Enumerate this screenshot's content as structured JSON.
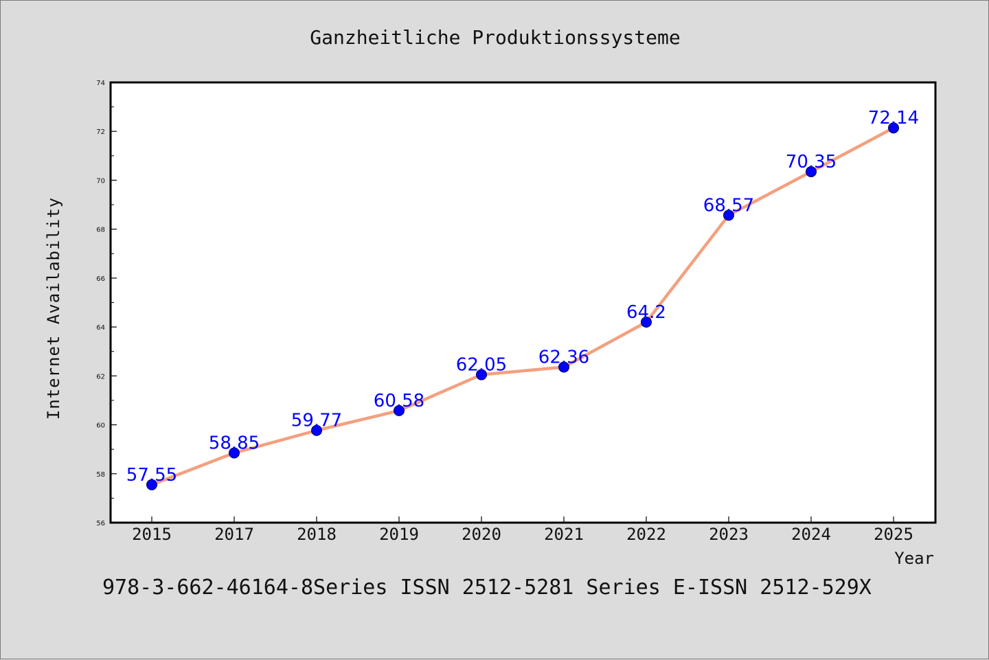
{
  "chart_data": {
    "type": "line",
    "title": "Ganzheitliche Produktionssysteme",
    "xlabel": "Year",
    "ylabel": "Internet Availability",
    "categories": [
      "2015",
      "2017",
      "2018",
      "2019",
      "2020",
      "2021",
      "2022",
      "2023",
      "2024",
      "2025"
    ],
    "series": [
      {
        "values": [
          57.55,
          58.85,
          59.77,
          60.58,
          62.05,
          62.36,
          64.2,
          68.57,
          70.35,
          72.14
        ],
        "line_color": "#f4a07f",
        "marker_color": "#0000ff",
        "label_color": "#0000ff"
      }
    ],
    "data_labels": [
      "57.55",
      "58.85",
      "59.77",
      "60.58",
      "62.05",
      "62.36",
      "64.2",
      "68.57",
      "70.35",
      "72.14"
    ],
    "ylim": [
      56,
      74
    ],
    "y_ticks": [
      56,
      58,
      60,
      62,
      64,
      66,
      68,
      70,
      72,
      74
    ],
    "grid": false,
    "legend": "none"
  },
  "footer": {
    "text": "978-3-662-46164-8Series ISSN 2512-5281 Series E-ISSN 2512-529X"
  }
}
